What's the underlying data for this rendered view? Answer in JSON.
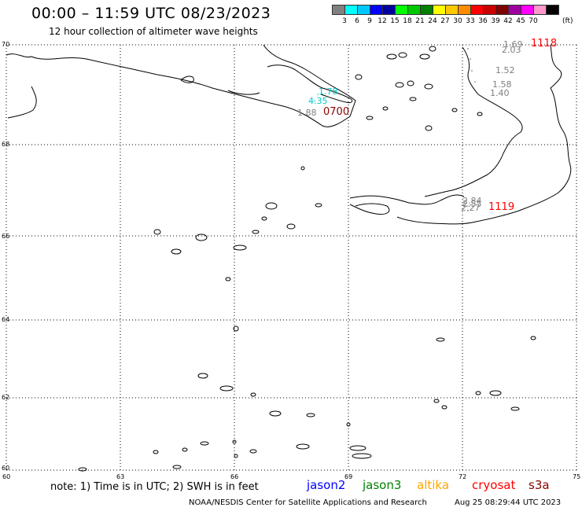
{
  "title": "00:00 – 11:59 UTC 08/23/2023",
  "subtitle": "12 hour collection of altimeter wave heights",
  "scale": {
    "colors": [
      "#808080",
      "#00ffff",
      "#00c8ff",
      "#0000ff",
      "#0000a0",
      "#00ff00",
      "#00c800",
      "#008000",
      "#ffff00",
      "#ffc800",
      "#ff8c00",
      "#ff0000",
      "#c80000",
      "#800000",
      "#a000a0",
      "#ff00ff",
      "#ff99cc",
      "#000000"
    ],
    "labels": [
      "3",
      "6",
      "9",
      "12",
      "15",
      "18",
      "21",
      "24",
      "27",
      "30",
      "33",
      "36",
      "39",
      "42",
      "45",
      "70"
    ],
    "unit": "(ft)"
  },
  "axes": {
    "y_ticks": [
      "70",
      "68",
      "66",
      "64",
      "62",
      "60"
    ],
    "x_ticks": [
      "60",
      "63",
      "66",
      "69",
      "72",
      "75"
    ]
  },
  "wave_labels": [
    {
      "text": "1.69",
      "color": "#808080"
    },
    {
      "text": "2.03",
      "color": "#808080"
    },
    {
      "text": "1.52",
      "color": "#808080"
    },
    {
      "text": "1.58",
      "color": "#808080"
    },
    {
      "text": "1.40",
      "color": "#808080"
    },
    {
      "text": "1.78",
      "color": "#00c8c8"
    },
    {
      "text": "4.35",
      "color": "#00c8c8"
    },
    {
      "text": "1.88",
      "color": "#808080"
    },
    {
      "text": "2.84",
      "color": "#808080"
    },
    {
      "text": "2.55",
      "color": "#808080"
    },
    {
      "text": "2.27",
      "color": "#808080"
    }
  ],
  "pass_times": [
    {
      "text": "1118",
      "color": "#ff0000"
    },
    {
      "text": "0700",
      "color": "#8b0000"
    },
    {
      "text": "1119",
      "color": "#ff0000"
    }
  ],
  "note": "note: 1) Time is in UTC; 2) SWH is in feet",
  "satellites": [
    {
      "name": "jason2",
      "color": "#0000ff"
    },
    {
      "name": "jason3",
      "color": "#008000"
    },
    {
      "name": "altika",
      "color": "#ffa500"
    },
    {
      "name": "cryosat",
      "color": "#ff0000"
    },
    {
      "name": "s3a",
      "color": "#8b0000"
    }
  ],
  "footer": {
    "source": "NOAA/NESDIS Center for Satellite Applications and Research",
    "timestamp": "Aug 25 08:29:44 UTC 2023"
  }
}
